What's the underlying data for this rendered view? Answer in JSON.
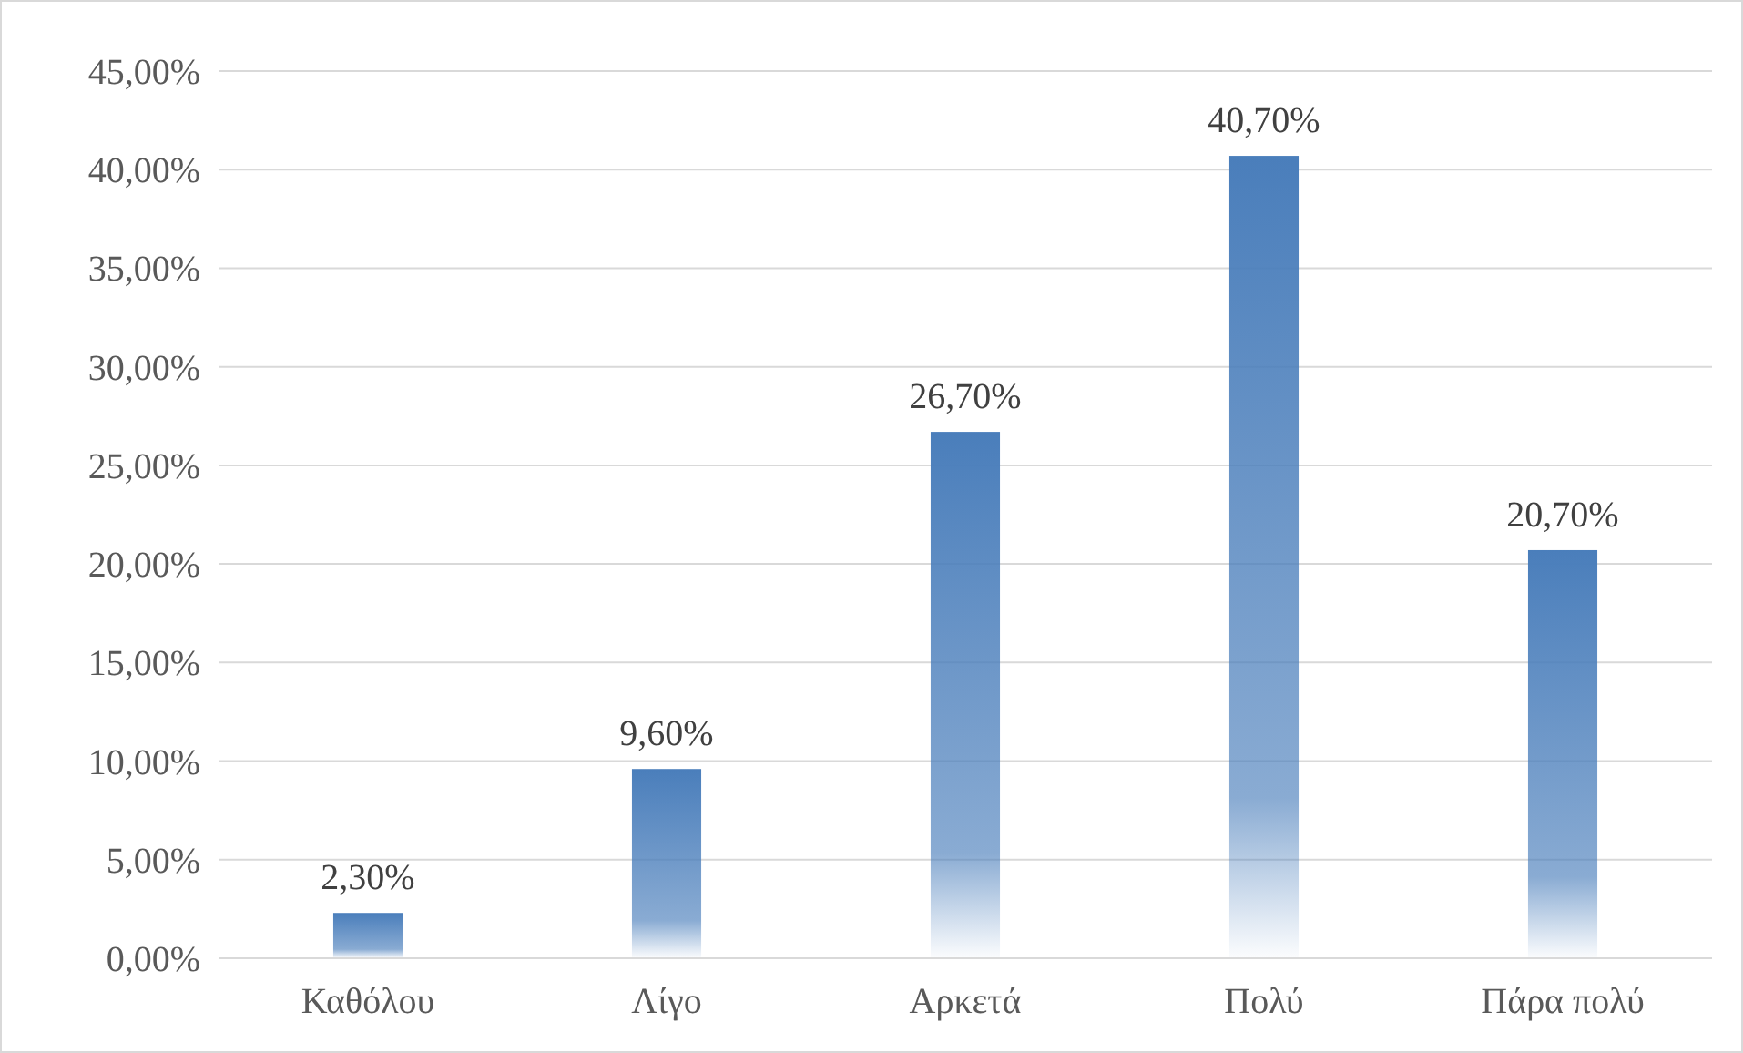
{
  "chart_data": {
    "type": "bar",
    "categories": [
      "Καθόλου",
      "Λίγο",
      "Αρκετά",
      "Πολύ",
      "Πάρα πολύ"
    ],
    "values": [
      2.3,
      9.6,
      26.7,
      40.7,
      20.7
    ],
    "value_labels": [
      "2,30%",
      "9,60%",
      "26,70%",
      "40,70%",
      "20,70%"
    ],
    "color": "#4a7ebb",
    "ylim": [
      0,
      45
    ],
    "yticks": [
      {
        "value": 0,
        "label": "0,00%"
      },
      {
        "value": 5,
        "label": "5,00%"
      },
      {
        "value": 10,
        "label": "10,00%"
      },
      {
        "value": 15,
        "label": "15,00%"
      },
      {
        "value": 20,
        "label": "20,00%"
      },
      {
        "value": 25,
        "label": "25,00%"
      },
      {
        "value": 30,
        "label": "30,00%"
      },
      {
        "value": 35,
        "label": "35,00%"
      },
      {
        "value": 40,
        "label": "40,00%"
      },
      {
        "value": 45,
        "label": "45,00%"
      }
    ],
    "grid": "y"
  }
}
